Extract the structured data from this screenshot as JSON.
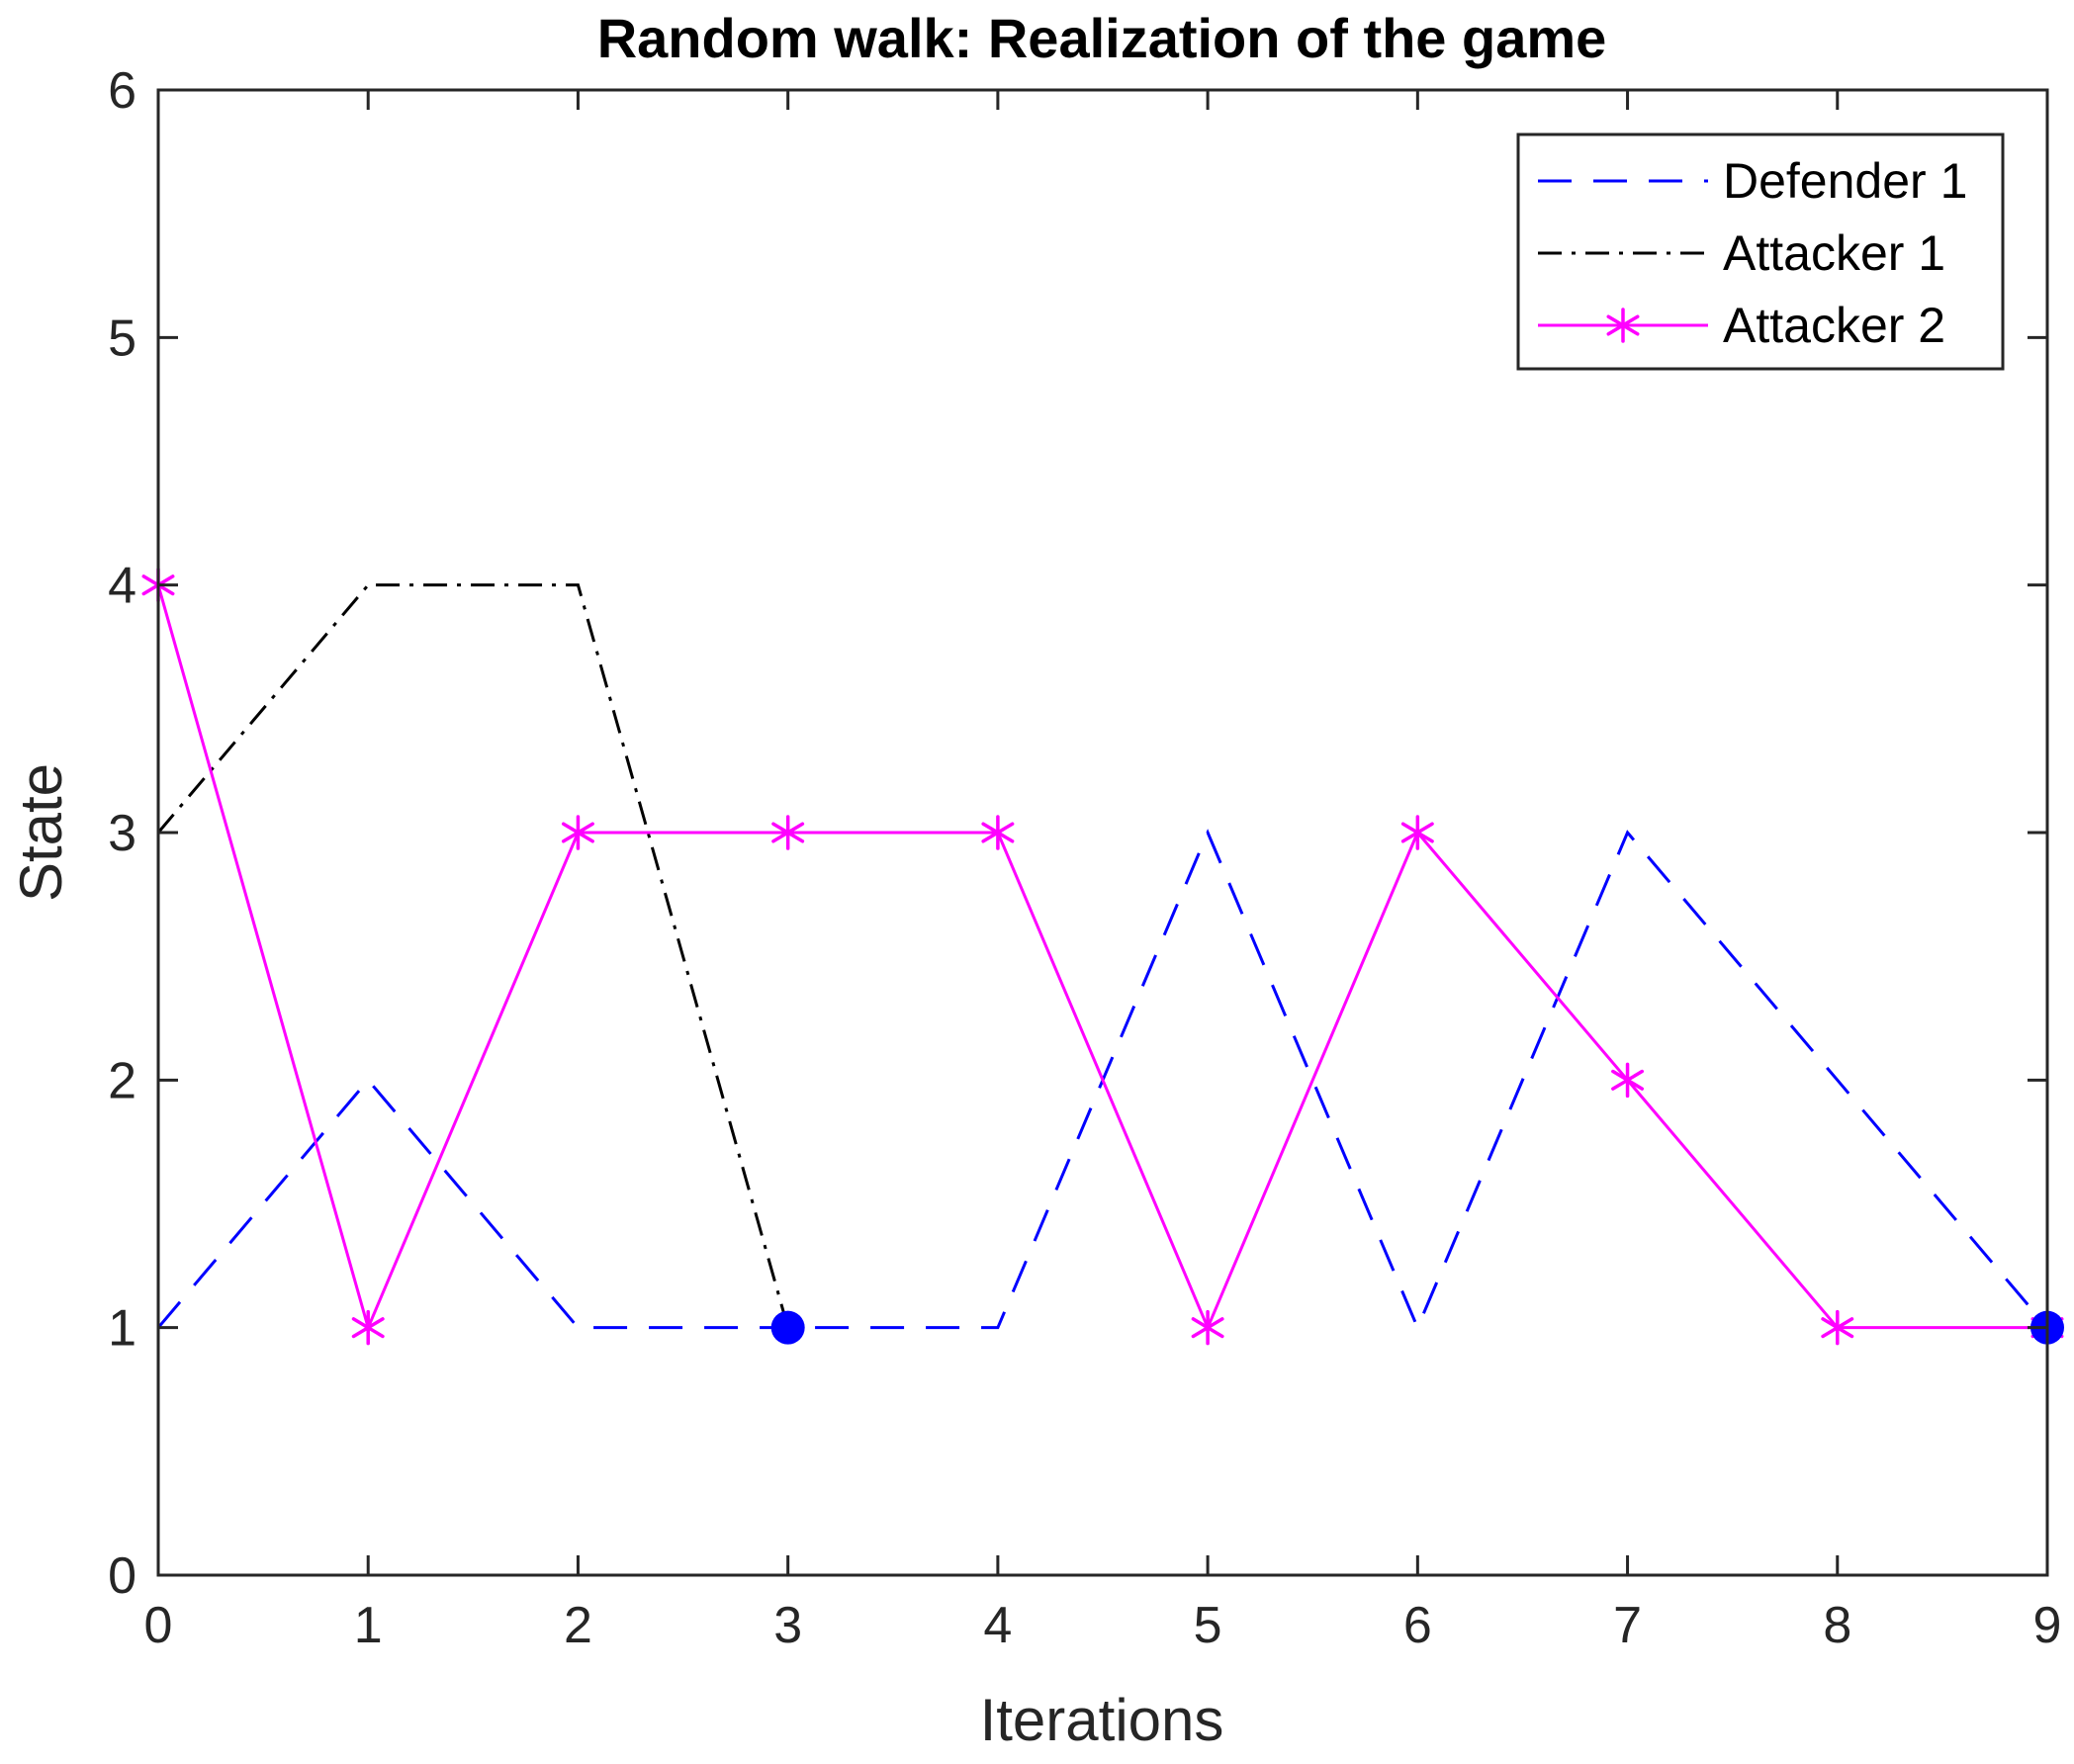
{
  "chart_data": {
    "type": "line",
    "title": "Random walk: Realization of the game",
    "xlabel": "Iterations",
    "ylabel": "State",
    "xlim": [
      0,
      9
    ],
    "ylim": [
      0,
      6
    ],
    "xticks": [
      "0",
      "1",
      "2",
      "3",
      "4",
      "5",
      "6",
      "7",
      "8",
      "9"
    ],
    "yticks": [
      "0",
      "1",
      "2",
      "3",
      "4",
      "5",
      "6"
    ],
    "grid": false,
    "legend_position": "top-right",
    "series": [
      {
        "name": "Defender 1",
        "color": "#0000ff",
        "line_style": "dashed",
        "marker": "none",
        "x": [
          0,
          1,
          2,
          3,
          4,
          5,
          6,
          7,
          8,
          9
        ],
        "y": [
          1,
          2,
          1,
          1,
          1,
          3,
          1,
          3,
          2,
          1
        ]
      },
      {
        "name": "Attacker 1",
        "color": "#000000",
        "line_style": "dash-dot",
        "marker": "none",
        "x": [
          0,
          1,
          2,
          3
        ],
        "y": [
          3,
          4,
          4,
          1
        ]
      },
      {
        "name": "Attacker 2",
        "color": "#ff00ff",
        "line_style": "solid",
        "marker": "asterisk",
        "x": [
          0,
          1,
          2,
          3,
          4,
          5,
          6,
          7,
          8,
          9
        ],
        "y": [
          4,
          1,
          3,
          3,
          3,
          1,
          3,
          2,
          1,
          1
        ]
      }
    ],
    "capture_points": {
      "color": "#0000ff",
      "marker": "filled-circle",
      "x": [
        3,
        9
      ],
      "y": [
        1,
        1
      ]
    }
  }
}
